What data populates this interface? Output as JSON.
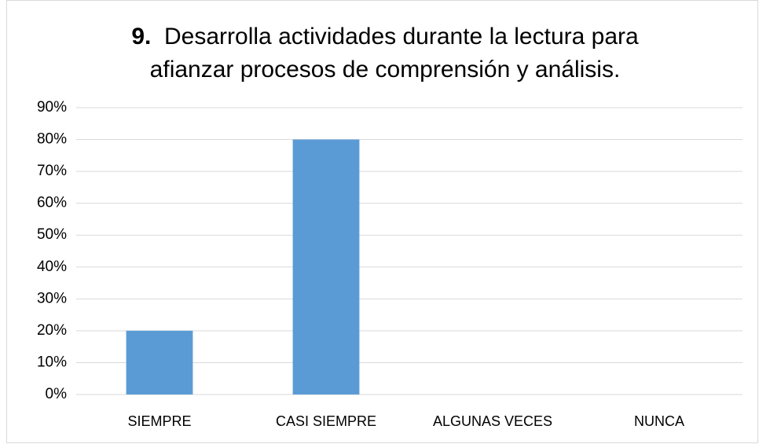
{
  "chart_data": {
    "type": "bar",
    "title": {
      "number": "9.",
      "lines": [
        "Desarrolla actividades durante la lectura para",
        "afianzar procesos de comprensión y análisis."
      ]
    },
    "categories": [
      "SIEMPRE",
      "CASI SIEMPRE",
      "ALGUNAS VECES",
      "NUNCA"
    ],
    "values": [
      20,
      80,
      0,
      0
    ],
    "color": "#5b9bd5",
    "ylim": [
      0,
      90
    ],
    "yticks": [
      {
        "value": 0,
        "label": "0%"
      },
      {
        "value": 10,
        "label": "10%"
      },
      {
        "value": 20,
        "label": "20%"
      },
      {
        "value": 30,
        "label": "30%"
      },
      {
        "value": 40,
        "label": "40%"
      },
      {
        "value": 50,
        "label": "50%"
      },
      {
        "value": 60,
        "label": "60%"
      },
      {
        "value": 70,
        "label": "70%"
      },
      {
        "value": 80,
        "label": "80%"
      },
      {
        "value": 90,
        "label": "90%"
      }
    ],
    "grid": true
  }
}
